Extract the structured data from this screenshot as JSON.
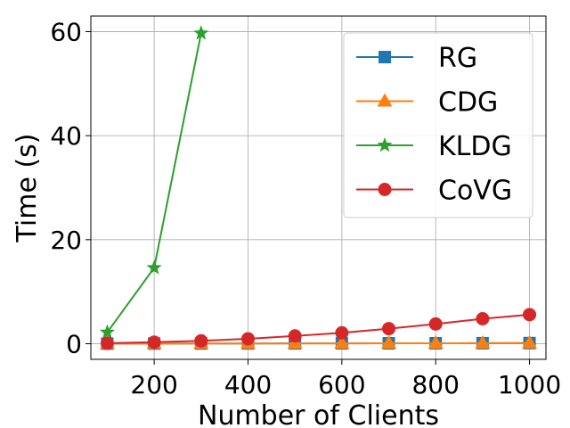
{
  "chart_data": {
    "type": "line",
    "title": "",
    "xlabel": "Number of Clients",
    "ylabel": "Time (s)",
    "xlim": [
      65,
      1035
    ],
    "ylim": [
      -3,
      63
    ],
    "xticks": [
      200,
      400,
      600,
      800,
      1000
    ],
    "yticks": [
      0,
      20,
      40,
      60
    ],
    "grid": true,
    "legend_position": "upper-right",
    "series": [
      {
        "name": "RG",
        "color": "#1f77b4",
        "marker": "square",
        "x": [
          100,
          200,
          300,
          400,
          500,
          600,
          700,
          800,
          900,
          1000
        ],
        "y": [
          0.02,
          0.03,
          0.04,
          0.05,
          0.06,
          0.07,
          0.08,
          0.09,
          0.1,
          0.12
        ]
      },
      {
        "name": "CDG",
        "color": "#ff7f0e",
        "marker": "triangle",
        "x": [
          100,
          200,
          300,
          400,
          500,
          600,
          700,
          800,
          900,
          1000
        ],
        "y": [
          0.02,
          0.03,
          0.04,
          0.05,
          0.06,
          0.07,
          0.08,
          0.09,
          0.1,
          0.12
        ]
      },
      {
        "name": "KLDG",
        "color": "#2ca02c",
        "marker": "star",
        "x": [
          100,
          200,
          300
        ],
        "y": [
          2.2,
          14.6,
          59.7
        ]
      },
      {
        "name": "CoVG",
        "color": "#d62728",
        "marker": "circle",
        "x": [
          100,
          200,
          300,
          400,
          500,
          600,
          700,
          800,
          900,
          1000
        ],
        "y": [
          0.1,
          0.3,
          0.55,
          0.95,
          1.5,
          2.1,
          2.9,
          3.8,
          4.8,
          5.6
        ]
      }
    ]
  }
}
